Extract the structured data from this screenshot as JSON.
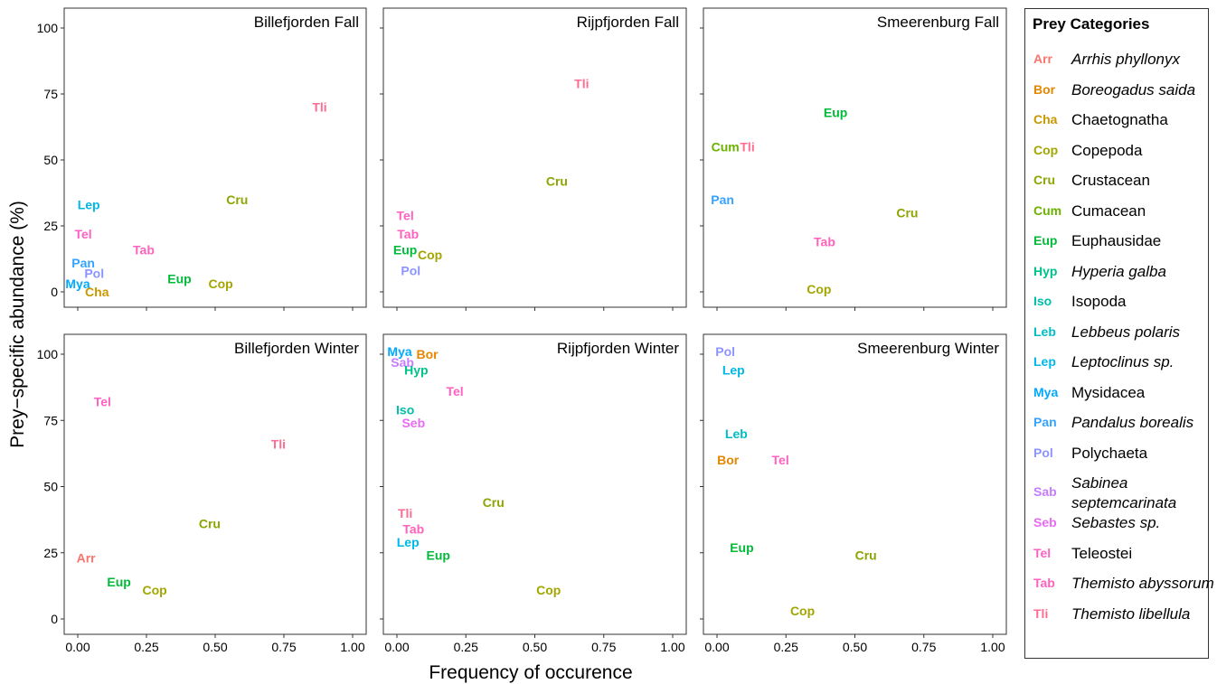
{
  "chart_data": {
    "type": "scatter",
    "xlabel": "Frequency of occurence",
    "ylabel": "Prey−specific abundance (%)",
    "xlim": [
      0,
      1
    ],
    "ylim": [
      0,
      100
    ],
    "x_ticks": [
      "0.00",
      "0.25",
      "0.50",
      "0.75",
      "1.00"
    ],
    "y_ticks": [
      "0",
      "25",
      "50",
      "75",
      "100"
    ],
    "panels": [
      {
        "title": "Billefjorden Fall",
        "points": [
          {
            "label": "Tli",
            "x": 0.88,
            "y": 70
          },
          {
            "label": "Cru",
            "x": 0.58,
            "y": 35
          },
          {
            "label": "Lep",
            "x": 0.04,
            "y": 33
          },
          {
            "label": "Tel",
            "x": 0.02,
            "y": 22
          },
          {
            "label": "Tab",
            "x": 0.24,
            "y": 16
          },
          {
            "label": "Pan",
            "x": 0.02,
            "y": 11
          },
          {
            "label": "Pol",
            "x": 0.06,
            "y": 7
          },
          {
            "label": "Eup",
            "x": 0.37,
            "y": 5
          },
          {
            "label": "Cop",
            "x": 0.52,
            "y": 3
          },
          {
            "label": "Mya",
            "x": 0.0,
            "y": 3
          },
          {
            "label": "Cha",
            "x": 0.07,
            "y": 0
          }
        ]
      },
      {
        "title": "Rijpfjorden Fall",
        "points": [
          {
            "label": "Tli",
            "x": 0.67,
            "y": 79
          },
          {
            "label": "Cru",
            "x": 0.58,
            "y": 42
          },
          {
            "label": "Tel",
            "x": 0.03,
            "y": 29
          },
          {
            "label": "Tab",
            "x": 0.04,
            "y": 22
          },
          {
            "label": "Eup",
            "x": 0.03,
            "y": 16
          },
          {
            "label": "Cop",
            "x": 0.12,
            "y": 14
          },
          {
            "label": "Pol",
            "x": 0.05,
            "y": 8
          }
        ]
      },
      {
        "title": "Smeerenburg Fall",
        "points": [
          {
            "label": "Eup",
            "x": 0.43,
            "y": 68
          },
          {
            "label": "Cum",
            "x": 0.03,
            "y": 55
          },
          {
            "label": "Tli",
            "x": 0.11,
            "y": 55
          },
          {
            "label": "Pan",
            "x": 0.02,
            "y": 35
          },
          {
            "label": "Cru",
            "x": 0.69,
            "y": 30
          },
          {
            "label": "Tab",
            "x": 0.39,
            "y": 19
          },
          {
            "label": "Cop",
            "x": 0.37,
            "y": 1
          }
        ]
      },
      {
        "title": "Billefjorden Winter",
        "points": [
          {
            "label": "Tel",
            "x": 0.09,
            "y": 82
          },
          {
            "label": "Tli",
            "x": 0.73,
            "y": 66
          },
          {
            "label": "Cru",
            "x": 0.48,
            "y": 36
          },
          {
            "label": "Arr",
            "x": 0.03,
            "y": 23
          },
          {
            "label": "Eup",
            "x": 0.15,
            "y": 14
          },
          {
            "label": "Cop",
            "x": 0.28,
            "y": 11
          }
        ]
      },
      {
        "title": "Rijpfjorden Winter",
        "points": [
          {
            "label": "Mya",
            "x": 0.01,
            "y": 101
          },
          {
            "label": "Bor",
            "x": 0.11,
            "y": 100
          },
          {
            "label": "Sab",
            "x": 0.02,
            "y": 97
          },
          {
            "label": "Hyp",
            "x": 0.07,
            "y": 94
          },
          {
            "label": "Tel",
            "x": 0.21,
            "y": 86
          },
          {
            "label": "Iso",
            "x": 0.03,
            "y": 79
          },
          {
            "label": "Seb",
            "x": 0.06,
            "y": 74
          },
          {
            "label": "Cru",
            "x": 0.35,
            "y": 44
          },
          {
            "label": "Tli",
            "x": 0.03,
            "y": 40
          },
          {
            "label": "Tab",
            "x": 0.06,
            "y": 34
          },
          {
            "label": "Lep",
            "x": 0.04,
            "y": 29
          },
          {
            "label": "Eup",
            "x": 0.15,
            "y": 24
          },
          {
            "label": "Cop",
            "x": 0.55,
            "y": 11
          }
        ]
      },
      {
        "title": "Smeerenburg Winter",
        "points": [
          {
            "label": "Pol",
            "x": 0.03,
            "y": 101
          },
          {
            "label": "Lep",
            "x": 0.06,
            "y": 94
          },
          {
            "label": "Leb",
            "x": 0.07,
            "y": 70
          },
          {
            "label": "Bor",
            "x": 0.04,
            "y": 60
          },
          {
            "label": "Tel",
            "x": 0.23,
            "y": 60
          },
          {
            "label": "Eup",
            "x": 0.09,
            "y": 27
          },
          {
            "label": "Cru",
            "x": 0.54,
            "y": 24
          },
          {
            "label": "Cop",
            "x": 0.31,
            "y": 3
          }
        ]
      }
    ],
    "legend": {
      "title": "Prey Categories",
      "placement": "right",
      "items": [
        {
          "code": "Arr",
          "label": "Arrhis phyllonyx",
          "italic": true,
          "color": "#F8766D"
        },
        {
          "code": "Bor",
          "label": "Boreogadus saida",
          "italic": true,
          "color": "#E58700"
        },
        {
          "code": "Cha",
          "label": "Chaetognatha",
          "italic": false,
          "color": "#C99800"
        },
        {
          "code": "Cop",
          "label": "Copepoda",
          "italic": false,
          "color": "#A3A500"
        },
        {
          "code": "Cru",
          "label": "Crustacean",
          "italic": false,
          "color": "#8EA400"
        },
        {
          "code": "Cum",
          "label": "Cumacean",
          "italic": false,
          "color": "#6BB100"
        },
        {
          "code": "Eup",
          "label": "Euphausidae",
          "italic": false,
          "color": "#00BA38"
        },
        {
          "code": "Hyp",
          "label": "Hyperia galba",
          "italic": true,
          "color": "#00C08B"
        },
        {
          "code": "Iso",
          "label": "Isopoda",
          "italic": false,
          "color": "#00BFAA"
        },
        {
          "code": "Leb",
          "label": "Lebbeus polaris",
          "italic": true,
          "color": "#00BCC4"
        },
        {
          "code": "Lep",
          "label": "Leptoclinus sp.",
          "italic": true,
          "color": "#00B8E7"
        },
        {
          "code": "Mya",
          "label": "Mysidacea",
          "italic": false,
          "color": "#00A9FF"
        },
        {
          "code": "Pan",
          "label": "Pandalus borealis",
          "italic": true,
          "color": "#35A2FF"
        },
        {
          "code": "Pol",
          "label": "Polychaeta",
          "italic": false,
          "color": "#8C94FF"
        },
        {
          "code": "Sab",
          "label": "Sabinea septemcarinata",
          "italic": true,
          "color": "#C77CFF"
        },
        {
          "code": "Seb",
          "label": "Sebastes sp.",
          "italic": true,
          "color": "#E76BF3"
        },
        {
          "code": "Tel",
          "label": "Teleostei",
          "italic": false,
          "color": "#FF61C3"
        },
        {
          "code": "Tab",
          "label": "Themisto abyssorum",
          "italic": true,
          "color": "#FF62BC"
        },
        {
          "code": "Tli",
          "label": "Themisto libellula",
          "italic": true,
          "color": "#FF6C91"
        }
      ]
    }
  }
}
